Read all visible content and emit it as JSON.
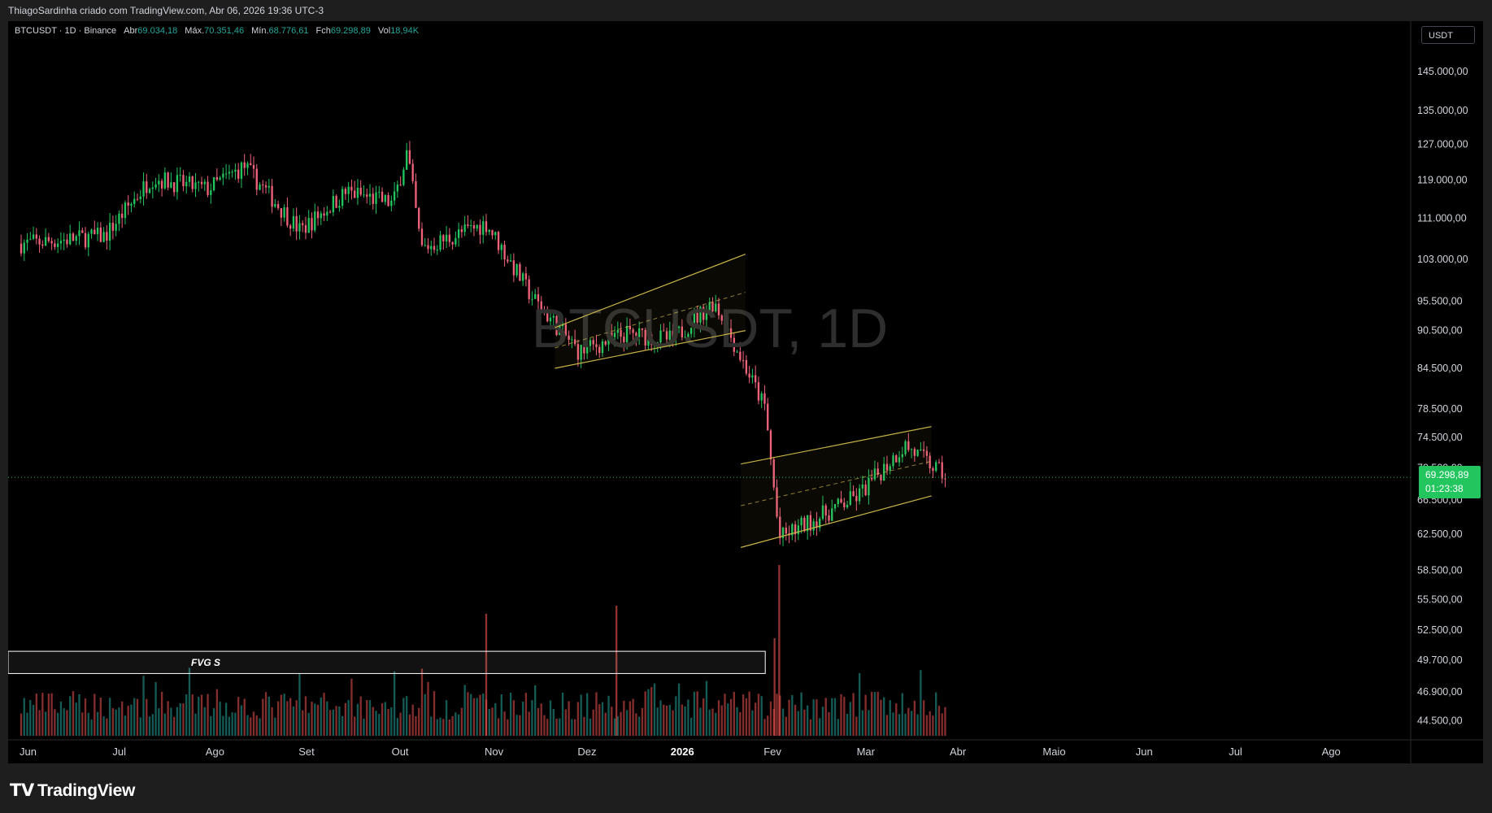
{
  "header": {
    "caption": "ThiagoSardinha criado com TradingView.com, Abr 06, 2026 19:36 UTC-3"
  },
  "legend": {
    "symbol": "BTCUSDT · 1D · Binance",
    "open_label": "Abr",
    "open": "69.034,18",
    "high_label": "Máx.",
    "high": "70.351,46",
    "low_label": "Mín.",
    "low": "68.776,61",
    "close_label": "Fch",
    "close": "69.298,89",
    "vol_label": "Vol",
    "vol": "18,94K"
  },
  "watermark": "BTCUSDT, 1D",
  "currency": "USDT",
  "last_price": {
    "price": "69.298,89",
    "countdown": "01:23:38"
  },
  "fvg_label": "FVG S",
  "footer": {
    "brand": "TradingView"
  },
  "colors": {
    "background": "#000000",
    "up": "#26a69a",
    "down": "#ef5350",
    "up_candle": "#22c55e",
    "down_candle": "#f0627a",
    "channel": "#c8b447",
    "last_price": "#22c55e"
  },
  "chart_data": {
    "type": "candlestick",
    "title": "BTCUSDT, 1D",
    "xlabel": "",
    "ylabel": "",
    "x_axis_labels": [
      "Jun",
      "Jul",
      "Ago",
      "Set",
      "Out",
      "Nov",
      "Dez",
      "2026",
      "Fev",
      "Mar",
      "Abr",
      "Maio",
      "Jun",
      "Jul",
      "Ago"
    ],
    "y_axis_labels": [
      "145.000,00",
      "135.000,00",
      "127.000,00",
      "119.000,00",
      "111.000,00",
      "103.000,00",
      "95.500,00",
      "90.500,00",
      "84.500,00",
      "78.500,00",
      "74.500,00",
      "70.500,00",
      "66.500,00",
      "62.500,00",
      "58.500,00",
      "55.500,00",
      "52.500,00",
      "49.700,00",
      "46.900,00",
      "44.500,00"
    ],
    "y_axis_values": [
      145000,
      135000,
      127000,
      119000,
      111000,
      103000,
      95500,
      90500,
      84500,
      78500,
      74500,
      70500,
      66500,
      62500,
      58500,
      55500,
      52500,
      49700,
      46900,
      44500
    ],
    "log_scale": true,
    "ylim": [
      43500,
      152000
    ],
    "xlim_months": [
      "Jun 2025",
      "Set 2026"
    ],
    "grid": false,
    "monthly_path": [
      {
        "t": "Jun",
        "price": 106000
      },
      {
        "t": "Jul",
        "price": 107500
      },
      {
        "t": "Jul mid",
        "price": 119500
      },
      {
        "t": "Ago",
        "price": 117000
      },
      {
        "t": "Ago mid",
        "price": 122000
      },
      {
        "t": "Set",
        "price": 108500
      },
      {
        "t": "Set mid",
        "price": 116500
      },
      {
        "t": "Out",
        "price": 114000
      },
      {
        "t": "Out peak",
        "price": 125500
      },
      {
        "t": "Out crash",
        "price": 105000
      },
      {
        "t": "Nov",
        "price": 110000
      },
      {
        "t": "Nov mid",
        "price": 96000
      },
      {
        "t": "Dez",
        "price": 87000
      },
      {
        "t": "Dez mid",
        "price": 90000
      },
      {
        "t": "2026",
        "price": 89000
      },
      {
        "t": "Jan mid",
        "price": 95500
      },
      {
        "t": "Fev",
        "price": 78500
      },
      {
        "t": "Fev low",
        "price": 62000
      },
      {
        "t": "Mar",
        "price": 67000
      },
      {
        "t": "Mar mid",
        "price": 73500
      },
      {
        "t": "Abr",
        "price": 69298.89
      }
    ],
    "last_close": 69298.89,
    "annotations": [
      {
        "type": "ascending_channel",
        "from": "Dez",
        "to": "2026",
        "low_start": 84500,
        "low_end": 90500,
        "high_start": 91000,
        "high_end": 104000
      },
      {
        "type": "ascending_channel",
        "from": "Fev",
        "to": "Mar",
        "low_start": 61000,
        "low_end": 67000,
        "high_start": 71000,
        "high_end": 76000
      },
      {
        "type": "zone",
        "label": "FVG S",
        "price_range": [
          48500,
          50500
        ]
      }
    ]
  }
}
